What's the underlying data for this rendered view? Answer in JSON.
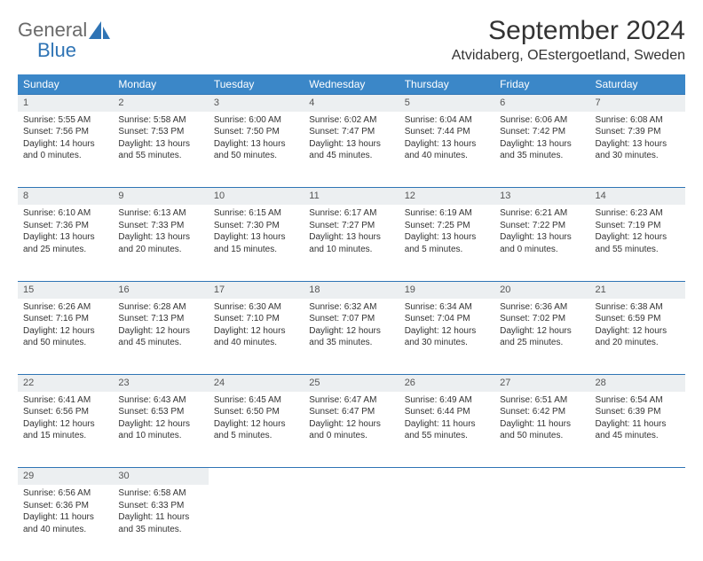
{
  "logo": {
    "general": "General",
    "blue": "Blue"
  },
  "title": "September 2024",
  "location": "Atvidaberg, OEstergoetland, Sweden",
  "colors": {
    "header_bg": "#3b87c8",
    "header_text": "#ffffff",
    "daynum_bg": "#eceff1",
    "border": "#2f74b5",
    "logo_gray": "#6a6a6a",
    "logo_blue": "#2f74b5",
    "text": "#333333"
  },
  "weekdays": [
    "Sunday",
    "Monday",
    "Tuesday",
    "Wednesday",
    "Thursday",
    "Friday",
    "Saturday"
  ],
  "weeks": [
    [
      {
        "n": "1",
        "sr": "Sunrise: 5:55 AM",
        "ss": "Sunset: 7:56 PM",
        "dl": "Daylight: 14 hours and 0 minutes."
      },
      {
        "n": "2",
        "sr": "Sunrise: 5:58 AM",
        "ss": "Sunset: 7:53 PM",
        "dl": "Daylight: 13 hours and 55 minutes."
      },
      {
        "n": "3",
        "sr": "Sunrise: 6:00 AM",
        "ss": "Sunset: 7:50 PM",
        "dl": "Daylight: 13 hours and 50 minutes."
      },
      {
        "n": "4",
        "sr": "Sunrise: 6:02 AM",
        "ss": "Sunset: 7:47 PM",
        "dl": "Daylight: 13 hours and 45 minutes."
      },
      {
        "n": "5",
        "sr": "Sunrise: 6:04 AM",
        "ss": "Sunset: 7:44 PM",
        "dl": "Daylight: 13 hours and 40 minutes."
      },
      {
        "n": "6",
        "sr": "Sunrise: 6:06 AM",
        "ss": "Sunset: 7:42 PM",
        "dl": "Daylight: 13 hours and 35 minutes."
      },
      {
        "n": "7",
        "sr": "Sunrise: 6:08 AM",
        "ss": "Sunset: 7:39 PM",
        "dl": "Daylight: 13 hours and 30 minutes."
      }
    ],
    [
      {
        "n": "8",
        "sr": "Sunrise: 6:10 AM",
        "ss": "Sunset: 7:36 PM",
        "dl": "Daylight: 13 hours and 25 minutes."
      },
      {
        "n": "9",
        "sr": "Sunrise: 6:13 AM",
        "ss": "Sunset: 7:33 PM",
        "dl": "Daylight: 13 hours and 20 minutes."
      },
      {
        "n": "10",
        "sr": "Sunrise: 6:15 AM",
        "ss": "Sunset: 7:30 PM",
        "dl": "Daylight: 13 hours and 15 minutes."
      },
      {
        "n": "11",
        "sr": "Sunrise: 6:17 AM",
        "ss": "Sunset: 7:27 PM",
        "dl": "Daylight: 13 hours and 10 minutes."
      },
      {
        "n": "12",
        "sr": "Sunrise: 6:19 AM",
        "ss": "Sunset: 7:25 PM",
        "dl": "Daylight: 13 hours and 5 minutes."
      },
      {
        "n": "13",
        "sr": "Sunrise: 6:21 AM",
        "ss": "Sunset: 7:22 PM",
        "dl": "Daylight: 13 hours and 0 minutes."
      },
      {
        "n": "14",
        "sr": "Sunrise: 6:23 AM",
        "ss": "Sunset: 7:19 PM",
        "dl": "Daylight: 12 hours and 55 minutes."
      }
    ],
    [
      {
        "n": "15",
        "sr": "Sunrise: 6:26 AM",
        "ss": "Sunset: 7:16 PM",
        "dl": "Daylight: 12 hours and 50 minutes."
      },
      {
        "n": "16",
        "sr": "Sunrise: 6:28 AM",
        "ss": "Sunset: 7:13 PM",
        "dl": "Daylight: 12 hours and 45 minutes."
      },
      {
        "n": "17",
        "sr": "Sunrise: 6:30 AM",
        "ss": "Sunset: 7:10 PM",
        "dl": "Daylight: 12 hours and 40 minutes."
      },
      {
        "n": "18",
        "sr": "Sunrise: 6:32 AM",
        "ss": "Sunset: 7:07 PM",
        "dl": "Daylight: 12 hours and 35 minutes."
      },
      {
        "n": "19",
        "sr": "Sunrise: 6:34 AM",
        "ss": "Sunset: 7:04 PM",
        "dl": "Daylight: 12 hours and 30 minutes."
      },
      {
        "n": "20",
        "sr": "Sunrise: 6:36 AM",
        "ss": "Sunset: 7:02 PM",
        "dl": "Daylight: 12 hours and 25 minutes."
      },
      {
        "n": "21",
        "sr": "Sunrise: 6:38 AM",
        "ss": "Sunset: 6:59 PM",
        "dl": "Daylight: 12 hours and 20 minutes."
      }
    ],
    [
      {
        "n": "22",
        "sr": "Sunrise: 6:41 AM",
        "ss": "Sunset: 6:56 PM",
        "dl": "Daylight: 12 hours and 15 minutes."
      },
      {
        "n": "23",
        "sr": "Sunrise: 6:43 AM",
        "ss": "Sunset: 6:53 PM",
        "dl": "Daylight: 12 hours and 10 minutes."
      },
      {
        "n": "24",
        "sr": "Sunrise: 6:45 AM",
        "ss": "Sunset: 6:50 PM",
        "dl": "Daylight: 12 hours and 5 minutes."
      },
      {
        "n": "25",
        "sr": "Sunrise: 6:47 AM",
        "ss": "Sunset: 6:47 PM",
        "dl": "Daylight: 12 hours and 0 minutes."
      },
      {
        "n": "26",
        "sr": "Sunrise: 6:49 AM",
        "ss": "Sunset: 6:44 PM",
        "dl": "Daylight: 11 hours and 55 minutes."
      },
      {
        "n": "27",
        "sr": "Sunrise: 6:51 AM",
        "ss": "Sunset: 6:42 PM",
        "dl": "Daylight: 11 hours and 50 minutes."
      },
      {
        "n": "28",
        "sr": "Sunrise: 6:54 AM",
        "ss": "Sunset: 6:39 PM",
        "dl": "Daylight: 11 hours and 45 minutes."
      }
    ],
    [
      {
        "n": "29",
        "sr": "Sunrise: 6:56 AM",
        "ss": "Sunset: 6:36 PM",
        "dl": "Daylight: 11 hours and 40 minutes."
      },
      {
        "n": "30",
        "sr": "Sunrise: 6:58 AM",
        "ss": "Sunset: 6:33 PM",
        "dl": "Daylight: 11 hours and 35 minutes."
      },
      null,
      null,
      null,
      null,
      null
    ]
  ]
}
